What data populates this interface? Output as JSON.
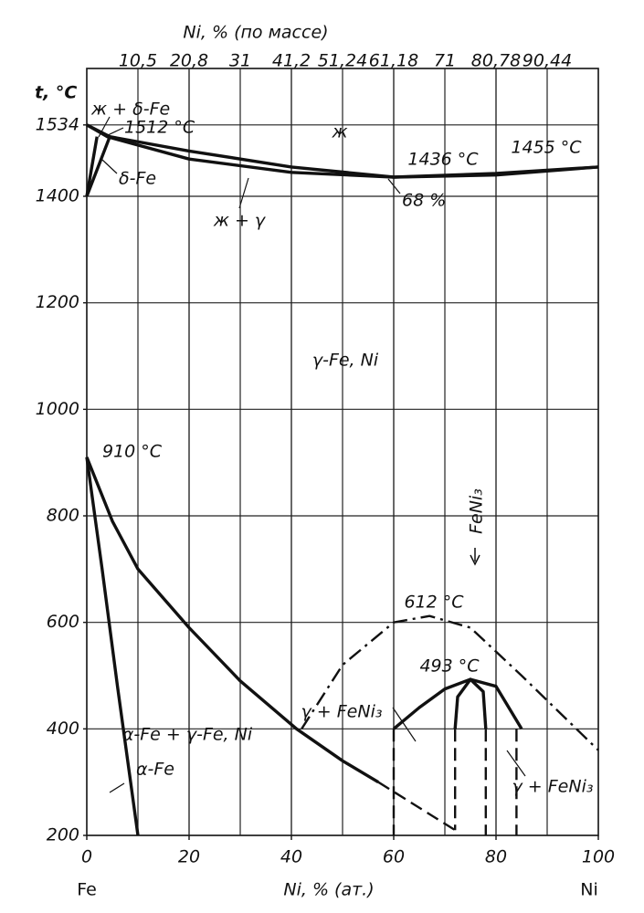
{
  "chart_data": {
    "type": "line",
    "y_label": "t, °C",
    "x_label": "Ni, % (ат.)",
    "x2_label": "Ni, % (по массе)",
    "x_start_label": "Fe",
    "x_end_label": "Ni",
    "xlim": [
      0,
      100
    ],
    "ylim": [
      200,
      1640
    ],
    "xticks": [
      0,
      20,
      40,
      60,
      80,
      100
    ],
    "x2ticks": [
      {
        "value": 10,
        "label": "10,5"
      },
      {
        "value": 20,
        "label": "20,8"
      },
      {
        "value": 30,
        "label": "31"
      },
      {
        "value": 40,
        "label": "41,2"
      },
      {
        "value": 50,
        "label": "51,24"
      },
      {
        "value": 60,
        "label": "61,18"
      },
      {
        "value": 70,
        "label": "71"
      },
      {
        "value": 80,
        "label": "80,78"
      },
      {
        "value": 90,
        "label": "90,44"
      }
    ],
    "yticks": [
      200,
      400,
      600,
      800,
      1000,
      1200,
      1400,
      1534
    ],
    "grid": true,
    "annotations": [
      "ж + δ-Fe",
      "1512 °C",
      "δ-Fe",
      "ж",
      "1436 °C",
      "1455 °C",
      "68 %",
      "ж + γ",
      "γ-Fe, Ni",
      "910 °C",
      "FeNi₃",
      "612 °C",
      "493 °C",
      "γ + FeNi₃",
      "α-Fe + γ-Fe, Ni",
      "α-Fe",
      "γ + FeNi₃"
    ],
    "series": [
      {
        "color": "#111",
        "dash": "solid",
        "x": [
          0,
          4.5,
          20,
          40,
          60,
          80,
          100
        ],
        "values": [
          1534,
          1512,
          1485,
          1455,
          1436,
          1440,
          1455
        ]
      },
      {
        "color": "#111",
        "dash": "solid",
        "x": [
          0,
          4,
          20,
          40,
          60,
          80,
          100
        ],
        "values": [
          1534,
          1512,
          1470,
          1445,
          1436,
          1443,
          1455
        ]
      },
      {
        "color": "#111",
        "dash": "solid",
        "x": [
          0,
          2
        ],
        "values": [
          1400,
          1512
        ]
      },
      {
        "color": "#111",
        "dash": "solid",
        "x": [
          0,
          4.5
        ],
        "values": [
          1400,
          1512
        ]
      },
      {
        "color": "#111",
        "dash": "solid",
        "x": [
          0,
          5,
          10,
          20,
          30,
          41,
          50,
          57,
          null,
          72
        ],
        "values": [
          910,
          790,
          700,
          590,
          490,
          400,
          340,
          300,
          null,
          null
        ]
      },
      {
        "color": "#111",
        "dash": "dashed",
        "x": [
          57,
          72
        ],
        "values": [
          300,
          210
        ]
      },
      {
        "color": "#111",
        "dash": "solid",
        "x": [
          0,
          3,
          6,
          10
        ],
        "values": [
          910,
          700,
          480,
          200
        ]
      },
      {
        "color": "#111",
        "dash": "dashdot",
        "x": [
          42,
          50,
          60,
          67,
          75,
          85,
          100
        ],
        "values": [
          400,
          520,
          600,
          612,
          590,
          500,
          360
        ]
      },
      {
        "color": "#111",
        "dash": "solid",
        "x": [
          60,
          65,
          70,
          75,
          80,
          85
        ],
        "values": [
          400,
          440,
          475,
          493,
          480,
          400
        ]
      },
      {
        "color": "#111",
        "dash": "solid",
        "x": [
          72,
          72.5,
          75,
          77.5,
          78
        ],
        "values": [
          400,
          460,
          493,
          470,
          400
        ]
      },
      {
        "color": "#111",
        "dash": "dashed",
        "x": [
          60,
          60
        ],
        "values": [
          400,
          200
        ]
      },
      {
        "color": "#111",
        "dash": "dashed",
        "x": [
          72,
          72
        ],
        "values": [
          400,
          210
        ]
      },
      {
        "color": "#111",
        "dash": "dashed",
        "x": [
          78,
          78
        ],
        "values": [
          400,
          200
        ]
      },
      {
        "color": "#111",
        "dash": "dashed",
        "x": [
          84,
          84
        ],
        "values": [
          400,
          200
        ]
      }
    ]
  }
}
